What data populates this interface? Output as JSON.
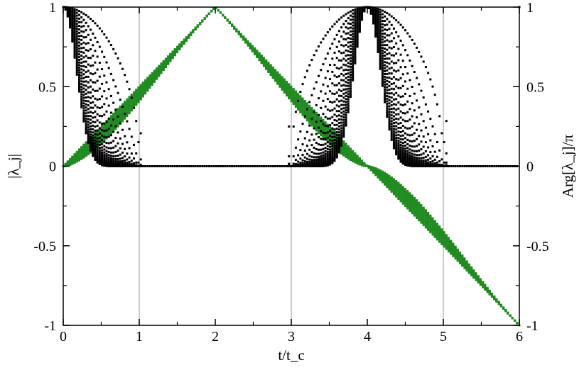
{
  "chart_data": {
    "type": "scatter",
    "title": "",
    "xlabel": "t/t_c",
    "ylabel_left": "|λ_j|",
    "ylabel_right": "Arg[λ_j]/π",
    "xlim": [
      0,
      6
    ],
    "ylim": [
      -1,
      1
    ],
    "y2lim": [
      -1,
      1
    ],
    "x_ticks": [
      "0",
      "1",
      "2",
      "3",
      "4",
      "5",
      "6"
    ],
    "y_ticks": [
      "-1",
      "-0.5",
      "0",
      "0.5",
      "1"
    ],
    "y2_ticks": [
      "-1",
      "-0.5",
      "0",
      "0.5",
      "1"
    ],
    "vertical_lines_x": [
      1,
      3,
      5
    ],
    "grid": false,
    "legend": "none",
    "num_eigenvalues": 30,
    "x_step": 0.03,
    "series": [
      {
        "axis": "left",
        "color": "#000000",
        "description_values": "|λ_j| = |cos(π t / 2)|^(j/2) for t outside the intervals [1,3] and [5,7]; 0 (with the smallest eigenvalues dipping to 0 near t=1, 3, 5) inside them",
        "zero_intervals": [
          [
            1.05,
            2.95
          ],
          [
            5.05,
            6.0
          ]
        ]
      },
      {
        "axis": "right",
        "color": "#228b22",
        "description_values": "Arg[λ_j]/π forming a triangle-wave envelope: rising from 0 at t=0 to 1 at t=2, falling to -1... (triangle between ±1 with period 4), with inner curves bending toward 0 near t=0 and t=4"
      }
    ]
  },
  "colors": {
    "magnitude": "#000000",
    "phase": "#228b22",
    "vline": "#cccccc"
  }
}
